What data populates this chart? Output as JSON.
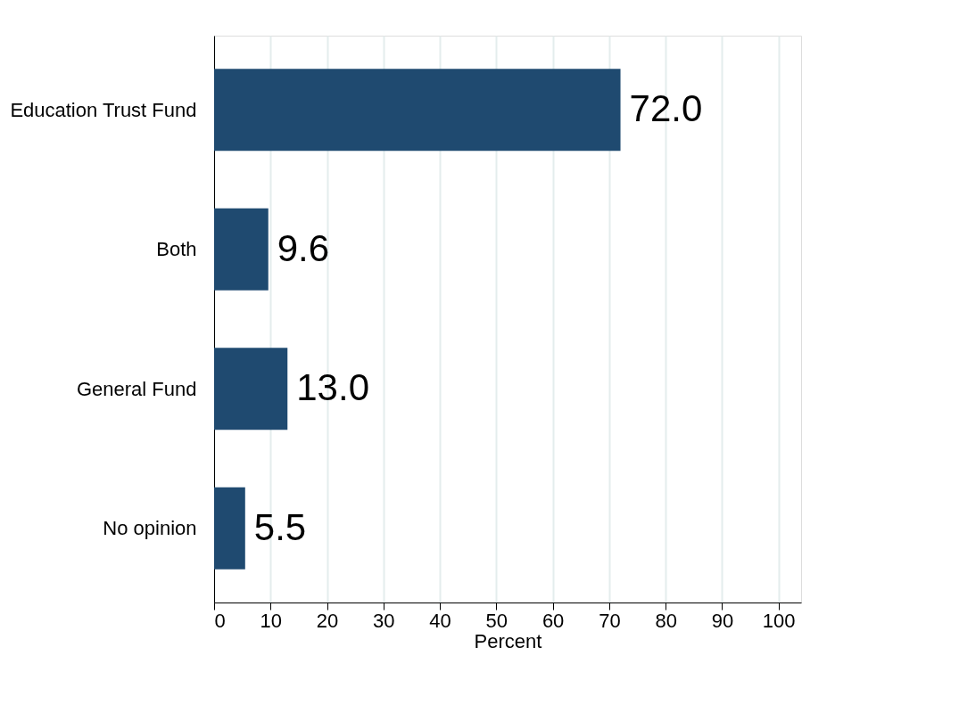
{
  "chart_data": {
    "type": "bar",
    "orientation": "horizontal",
    "xlabel": "Percent",
    "categories": [
      "Education Trust Fund",
      "Both",
      "General Fund",
      "No opinion"
    ],
    "values": [
      72.0,
      9.6,
      13.0,
      5.5
    ],
    "value_labels": [
      "72.0",
      "9.6",
      "13.0",
      "5.5"
    ],
    "color": "#1f4a70",
    "xlim": [
      0,
      104
    ],
    "xticks": [
      0,
      10,
      20,
      30,
      40,
      50,
      60,
      70,
      80,
      90,
      100
    ],
    "grid": "x"
  }
}
